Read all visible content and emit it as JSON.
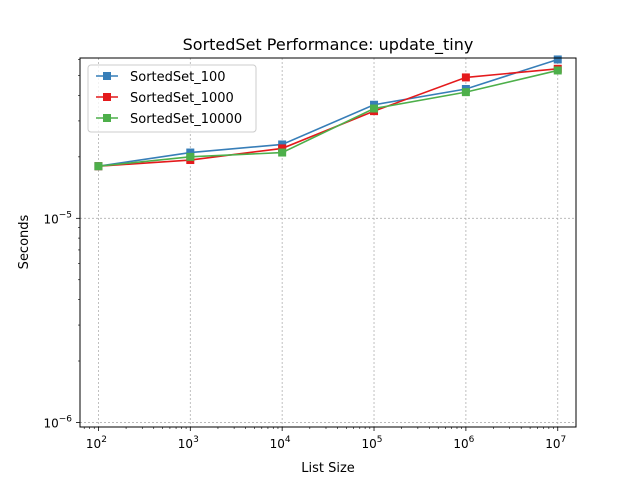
{
  "chart_data": {
    "type": "line",
    "title": "SortedSet Performance: update_tiny",
    "xlabel": "List Size",
    "ylabel": "Seconds",
    "xscale": "log",
    "yscale": "log",
    "x": [
      100,
      1000,
      10000,
      100000,
      1000000,
      10000000
    ],
    "xlim": [
      63,
      15800000
    ],
    "ylim": [
      9.5e-07,
      6.1e-05
    ],
    "xticks": [
      {
        "value": 100,
        "base": "10",
        "exp": "2"
      },
      {
        "value": 1000,
        "base": "10",
        "exp": "3"
      },
      {
        "value": 10000,
        "base": "10",
        "exp": "4"
      },
      {
        "value": 100000,
        "base": "10",
        "exp": "5"
      },
      {
        "value": 1000000,
        "base": "10",
        "exp": "6"
      },
      {
        "value": 10000000,
        "base": "10",
        "exp": "7"
      }
    ],
    "yticks": [
      {
        "value": 1e-06,
        "base": "10",
        "exp": "−6"
      },
      {
        "value": 1e-05,
        "base": "10",
        "exp": "−5"
      }
    ],
    "grid": true,
    "legend_position": "top-left",
    "series": [
      {
        "name": "SortedSet_100",
        "color": "#377eb8",
        "marker": "square",
        "values": [
          1.8e-05,
          2.1e-05,
          2.3e-05,
          3.6e-05,
          4.3e-05,
          6e-05
        ]
      },
      {
        "name": "SortedSet_1000",
        "color": "#e41a1c",
        "marker": "square",
        "values": [
          1.8e-05,
          1.93e-05,
          2.2e-05,
          3.35e-05,
          4.9e-05,
          5.4e-05
        ]
      },
      {
        "name": "SortedSet_10000",
        "color": "#4daf4a",
        "marker": "square",
        "values": [
          1.8e-05,
          2e-05,
          2.1e-05,
          3.45e-05,
          4.15e-05,
          5.3e-05
        ]
      }
    ]
  }
}
